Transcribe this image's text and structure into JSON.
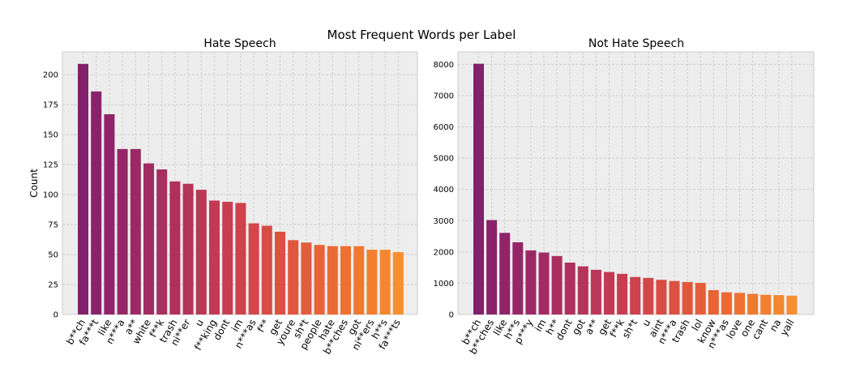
{
  "figure_title": "Most Frequent Words per Label",
  "chart_data": [
    {
      "type": "bar",
      "title": "Hate Speech",
      "xlabel": "",
      "ylabel": "Count",
      "ylim": [
        0,
        219
      ],
      "yticks": [
        0,
        25,
        50,
        75,
        100,
        125,
        150,
        175,
        200
      ],
      "grid": true,
      "categories": [
        "b**ch",
        "fa***t",
        "like",
        "n***a",
        "a**",
        "white",
        "f**k",
        "trash",
        "ni**er",
        "u",
        "f**king",
        "dont",
        "im",
        "n***as",
        "f**",
        "get",
        "youre",
        "sh*t",
        "people",
        "hate",
        "b**ches",
        "got",
        "ni**ers",
        "h**s",
        "fa***ts"
      ],
      "values": [
        209,
        186,
        167,
        138,
        138,
        126,
        121,
        111,
        109,
        104,
        95,
        94,
        93,
        76,
        74,
        69,
        62,
        60,
        58,
        57,
        57,
        57,
        54,
        54,
        52
      ],
      "colors": [
        "#82206c",
        "#89226b",
        "#8f2469",
        "#962667",
        "#9c2965",
        "#a32b63",
        "#aa2e60",
        "#b0305d",
        "#b6335a",
        "#bc3657",
        "#c23a54",
        "#c83e50",
        "#cd424c",
        "#d24749",
        "#d74c45",
        "#dc5141",
        "#e0573d",
        "#e45d3a",
        "#e86336",
        "#eb6a33",
        "#ee7131",
        "#f1782f",
        "#f37f2e",
        "#f4872e",
        "#f58f2f"
      ]
    },
    {
      "type": "bar",
      "title": "Not Hate Speech",
      "xlabel": "",
      "ylabel": "",
      "ylim": [
        0,
        8400
      ],
      "yticks": [
        0,
        1000,
        2000,
        3000,
        4000,
        5000,
        6000,
        7000,
        8000
      ],
      "grid": true,
      "categories": [
        "b**ch",
        "b**ches",
        "like",
        "h**s",
        "p***y",
        "im",
        "h**",
        "dont",
        "got",
        "a**",
        "get",
        "f**k",
        "sh*t",
        "u",
        "aint",
        "n***a",
        "trash",
        "lol",
        "know",
        "n***as",
        "love",
        "one",
        "cant",
        "na",
        "yall"
      ],
      "values": [
        8020,
        3020,
        2610,
        2310,
        2050,
        1980,
        1870,
        1660,
        1540,
        1430,
        1360,
        1300,
        1200,
        1170,
        1110,
        1070,
        1040,
        1010,
        780,
        710,
        690,
        660,
        630,
        620,
        600
      ],
      "colors": [
        "#82206c",
        "#89226b",
        "#8f2469",
        "#962667",
        "#9c2965",
        "#a32b63",
        "#aa2e60",
        "#b0305d",
        "#b6335a",
        "#bc3657",
        "#c23a54",
        "#c83e50",
        "#cd424c",
        "#d24749",
        "#d74c45",
        "#dc5141",
        "#e0573d",
        "#e45d3a",
        "#e86336",
        "#eb6a33",
        "#ee7131",
        "#f1782f",
        "#f37f2e",
        "#f4872e",
        "#f58f2f"
      ]
    }
  ]
}
